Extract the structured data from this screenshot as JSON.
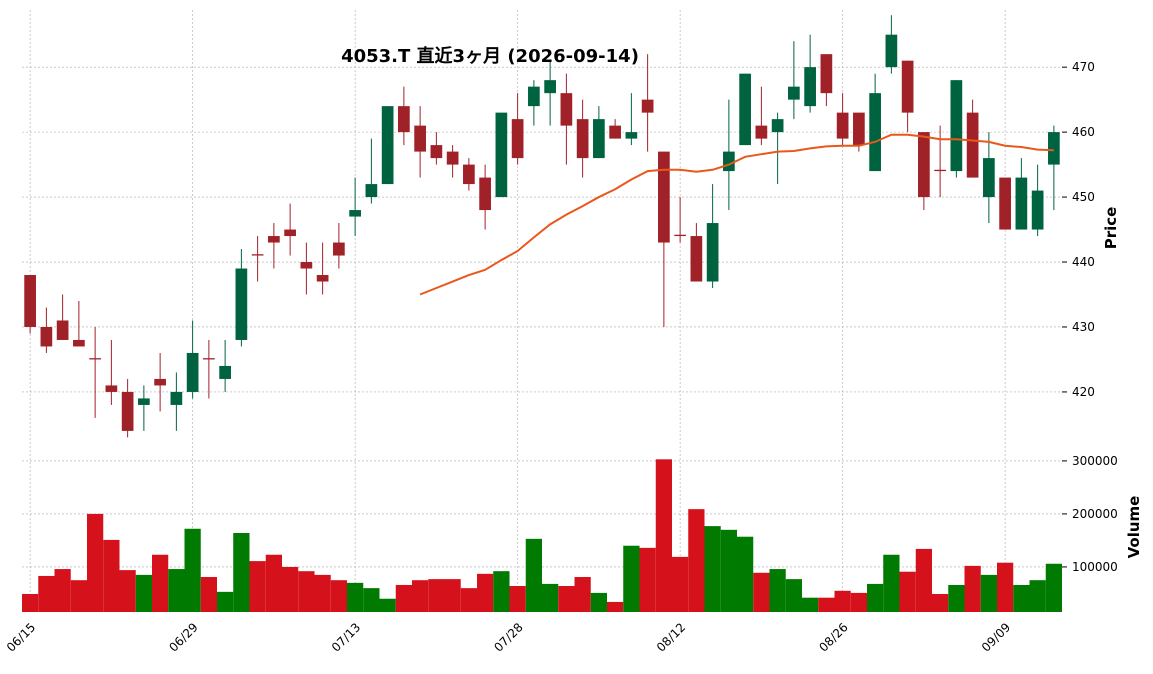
{
  "chart_data": [
    {
      "type": "candlestick",
      "title": "4053.T  直近3ヶ月  (2026-09-14)",
      "ylabel": "Price",
      "categories": [
        "06/15",
        null,
        null,
        null,
        null,
        null,
        null,
        null,
        null,
        null,
        "06/29",
        null,
        null,
        null,
        null,
        null,
        null,
        null,
        null,
        null,
        "07/13",
        null,
        null,
        null,
        null,
        null,
        null,
        null,
        null,
        null,
        "07/28",
        null,
        null,
        null,
        null,
        null,
        null,
        null,
        null,
        null,
        "08/12",
        null,
        null,
        null,
        null,
        null,
        null,
        null,
        null,
        null,
        "08/26",
        null,
        null,
        null,
        null,
        null,
        null,
        null,
        null,
        null,
        "09/09",
        null,
        null,
        null
      ],
      "open": [
        438,
        430,
        431,
        428,
        425.2,
        421,
        420,
        418,
        422,
        418,
        420,
        425.2,
        422,
        428,
        441.2,
        444,
        445,
        440,
        438,
        443,
        447,
        450,
        452,
        464,
        461,
        458,
        457,
        455,
        453,
        450,
        462,
        464,
        466,
        466,
        462,
        456,
        461,
        459,
        465,
        457,
        444.2,
        444,
        437,
        454,
        458,
        461,
        460,
        465,
        464,
        472,
        463,
        463,
        454,
        470,
        471,
        460,
        454.2,
        454,
        463,
        450,
        453,
        445,
        445,
        455
      ],
      "high": [
        438,
        433,
        435,
        434,
        430,
        428,
        422,
        421,
        426,
        423,
        431,
        428,
        428,
        442,
        444,
        446,
        449,
        443,
        443,
        446,
        453,
        459,
        464,
        467,
        464,
        460,
        458,
        456,
        455,
        463,
        466,
        468,
        471,
        469,
        465,
        464,
        462,
        466,
        472,
        457,
        450,
        446,
        452,
        465,
        469,
        467,
        463,
        474,
        475,
        472,
        466,
        463,
        469,
        478,
        471,
        460,
        461,
        468,
        465,
        460,
        453,
        456,
        455,
        461
      ],
      "low": [
        429,
        426,
        428,
        427,
        416,
        418,
        413,
        414,
        417,
        414,
        419,
        419,
        420,
        427,
        437,
        439,
        441,
        435,
        435,
        439,
        444,
        449,
        452,
        458,
        453,
        455,
        453,
        451,
        445,
        450,
        455,
        461,
        461,
        455,
        453,
        456,
        459,
        458,
        457,
        430,
        443,
        437,
        436,
        448,
        458,
        458,
        452,
        462,
        463,
        464,
        458,
        457,
        454,
        469,
        460,
        448,
        450,
        453,
        453,
        446,
        445,
        445,
        444,
        448
      ],
      "close": [
        430,
        427,
        428,
        427,
        425,
        420,
        414,
        419,
        421,
        420,
        426,
        425,
        424,
        439,
        441,
        443,
        444,
        439,
        437,
        441,
        448,
        452,
        464,
        460,
        457,
        456,
        455,
        452,
        448,
        463,
        456,
        467,
        468,
        461,
        456,
        462,
        459,
        460,
        463,
        443,
        444,
        437,
        446,
        457,
        469,
        459,
        462,
        467,
        470,
        466,
        459,
        458,
        466,
        475,
        463,
        450,
        454,
        468,
        453,
        456,
        445,
        453,
        451,
        460
      ],
      "ma": {
        "color": "#e8581b",
        "values": [
          null,
          null,
          null,
          null,
          null,
          null,
          null,
          null,
          null,
          null,
          null,
          null,
          null,
          null,
          null,
          null,
          null,
          null,
          null,
          null,
          null,
          null,
          null,
          null,
          435,
          436,
          437,
          438,
          438.8,
          440.3,
          441.7,
          443.8,
          445.8,
          447.3,
          448.6,
          450,
          451.2,
          452.7,
          454,
          454.2,
          454.2,
          453.9,
          454.2,
          455,
          456.2,
          456.6,
          457,
          457.1,
          457.5,
          457.8,
          457.9,
          457.9,
          458.5,
          459.6,
          459.6,
          459.3,
          458.9,
          458.9,
          458.7,
          458.5,
          457.9,
          457.7,
          457.3,
          457.2
        ]
      },
      "up_color": "#006340",
      "down_color": "#a02128",
      "ylim": [
        412.6,
        478.8
      ],
      "yticks": [
        420,
        430,
        440,
        450,
        460,
        470
      ],
      "grid": true
    },
    {
      "type": "bar",
      "ylabel": "Volume",
      "values": [
        49000,
        83000,
        96000,
        75000,
        200000,
        151000,
        94000,
        85000,
        123000,
        96000,
        172000,
        81000,
        53000,
        164000,
        111000,
        123000,
        100000,
        92000,
        85000,
        75000,
        70000,
        60000,
        40000,
        66000,
        75000,
        77000,
        77000,
        60000,
        87000,
        92000,
        64000,
        153000,
        68000,
        64000,
        81000,
        51000,
        34000,
        140000,
        136000,
        303000,
        119000,
        209000,
        177000,
        170000,
        157000,
        89000,
        96000,
        77000,
        42000,
        42000,
        55000,
        51000,
        68000,
        123000,
        91000,
        134000,
        49000,
        66000,
        102000,
        85000,
        108000,
        66000,
        75000,
        106000
      ],
      "up_color": "#007a00",
      "down_color": "#d5121b",
      "ylim": [
        15000,
        330000
      ],
      "yticks": [
        100000,
        200000,
        300000
      ],
      "grid": true
    }
  ]
}
